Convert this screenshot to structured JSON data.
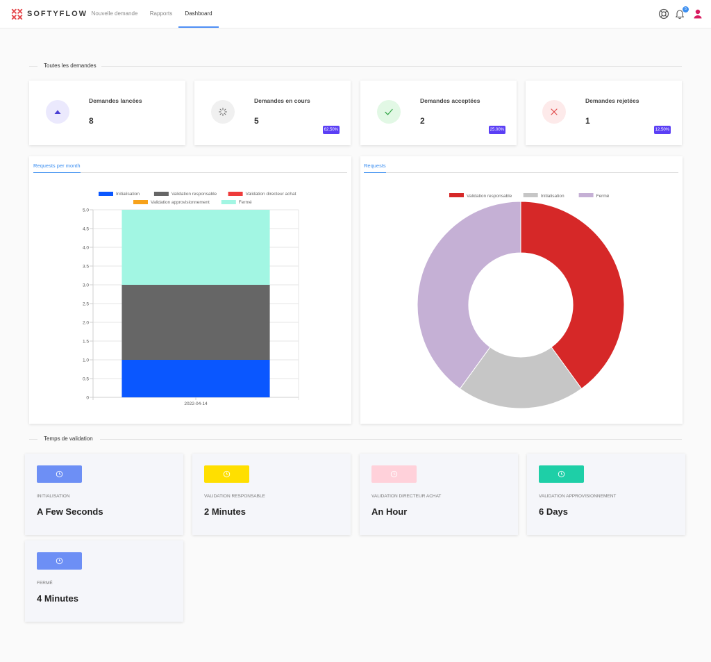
{
  "brand": {
    "name": "SOFTYFLOW",
    "color": "#e4474b"
  },
  "nav": {
    "items": [
      {
        "label": "Nouvelle demande",
        "active": false
      },
      {
        "label": "Rapports",
        "active": false
      },
      {
        "label": "Dashboard",
        "active": true
      }
    ]
  },
  "header": {
    "help_icon": "lifebuoy-icon",
    "notifications_icon": "bell-icon",
    "notifications_count": "5",
    "user_icon": "user-icon",
    "user_color": "#d81b60"
  },
  "sections": {
    "all_requests": "Toutes les demandes",
    "validation_time": "Temps de validation"
  },
  "stats": [
    {
      "title": "Demandes lancées",
      "value": "8",
      "percent": "",
      "icon": "triangle-up-icon",
      "icon_color": "#4a3fd4",
      "icon_bg": "#ebe9fd"
    },
    {
      "title": "Demandes en cours",
      "value": "5",
      "percent": "62.50%",
      "icon": "spinner-icon",
      "icon_color": "#666666",
      "icon_bg": "#f0f0f0"
    },
    {
      "title": "Demandes acceptées",
      "value": "2",
      "percent": "25.00%",
      "icon": "check-icon",
      "icon_color": "#3aa94d",
      "icon_bg": "#e2f8e5"
    },
    {
      "title": "Demandes rejetées",
      "value": "1",
      "percent": "12.50%",
      "icon": "close-icon",
      "icon_color": "#e04a4a",
      "icon_bg": "#fdeaea"
    }
  ],
  "charts": {
    "bar_tab": "Requests per month",
    "pie_tab": "Requests"
  },
  "chart_data": [
    {
      "type": "bar",
      "stacked": true,
      "categories": [
        "2022-04-14"
      ],
      "series": [
        {
          "name": "Initialisation",
          "values": [
            1
          ],
          "color": "#0a57ff"
        },
        {
          "name": "Validation responsable",
          "values": [
            2
          ],
          "color": "#666666"
        },
        {
          "name": "Validation directeur achat",
          "values": [
            0
          ],
          "color": "#ee3b3b"
        },
        {
          "name": "Validation approvisionnement",
          "values": [
            0
          ],
          "color": "#f7a21b"
        },
        {
          "name": "Fermé",
          "values": [
            2
          ],
          "color": "#a2f6e3"
        }
      ],
      "ylim": [
        0,
        5
      ],
      "yticks": [
        "0",
        "0.5",
        "1.0",
        "1.5",
        "2.0",
        "2.5",
        "3.0",
        "3.5",
        "4.0",
        "4.5",
        "5.0"
      ],
      "grid": true,
      "legend": "top"
    },
    {
      "type": "pie",
      "donut": true,
      "slices": [
        {
          "label": "Validation responsable",
          "value": 2,
          "color": "#d62828"
        },
        {
          "label": "Initialisation",
          "value": 1,
          "color": "#c6c6c6"
        },
        {
          "label": "Fermé",
          "value": 2,
          "color": "#c5b0d5"
        }
      ],
      "legend": "top"
    }
  ],
  "timings": [
    {
      "label": "INITIALISATION",
      "value": "A Few Seconds",
      "color": "#6d8ff5",
      "icon": "clock-icon"
    },
    {
      "label": "VALIDATION RESPONSABLE",
      "value": "2 Minutes",
      "color": "#ffdf00",
      "icon": "clock-icon"
    },
    {
      "label": "VALIDATION DIRECTEUR ACHAT",
      "value": "An Hour",
      "color": "#ffd1da",
      "icon": "clock-icon"
    },
    {
      "label": "VALIDATION APPROVISIONNEMENT",
      "value": "6 Days",
      "color": "#1ecfa7",
      "icon": "clock-icon"
    },
    {
      "label": "FERMÉ",
      "value": "4 Minutes",
      "color": "#6d8ff5",
      "icon": "clock-icon"
    }
  ]
}
